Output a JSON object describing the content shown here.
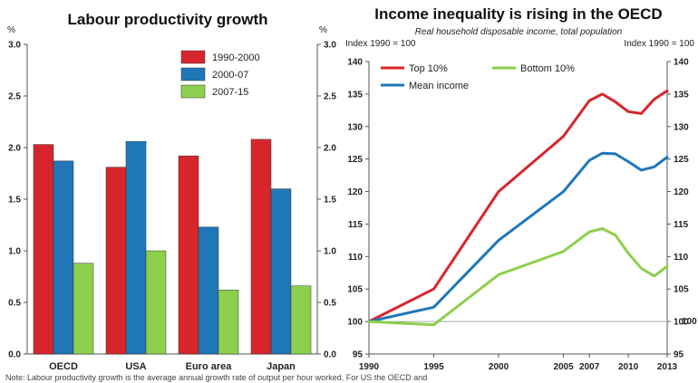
{
  "colors": {
    "series1": "#d7262b",
    "series2": "#1f77b8",
    "series3": "#8ccf4d",
    "top10": "#d7262b",
    "mean": "#1f77b8",
    "bottom10": "#8ccf4d",
    "axis": "#555555",
    "baseline": "#aaaaaa"
  },
  "chart_data": [
    {
      "type": "bar",
      "title": "Labour productivity growth",
      "unit_left": "%",
      "unit_right": "%",
      "categories": [
        "OECD",
        "USA",
        "Euro area",
        "Japan"
      ],
      "series": [
        {
          "name": "1990-2000",
          "values": [
            2.03,
            1.81,
            1.92,
            2.08
          ]
        },
        {
          "name": "2000-07",
          "values": [
            1.87,
            2.06,
            1.23,
            1.6
          ]
        },
        {
          "name": "2007-15",
          "values": [
            0.88,
            1.0,
            0.62,
            0.66
          ]
        }
      ],
      "ylim": [
        0,
        3
      ],
      "yticks": [
        "0.0",
        "0.5",
        "1.0",
        "1.5",
        "2.0",
        "2.5",
        "3.0"
      ],
      "legend": "top-right"
    },
    {
      "type": "line",
      "title": "Income inequality is rising in the OECD",
      "subtitle": "Real household disposable income, total population",
      "ylabel_left": "Index 1990 = 100",
      "ylabel_right": "Index 1990 = 100",
      "xlim": [
        1990,
        2013
      ],
      "ylim": [
        95,
        140
      ],
      "yticks": [
        "95",
        "100",
        "105",
        "110",
        "115",
        "120",
        "125",
        "130",
        "135",
        "140"
      ],
      "xtick_values": [
        1990,
        1995,
        2000,
        2005,
        2007,
        2010,
        2013
      ],
      "xtick_labels": [
        "1990",
        "1995",
        "2000",
        "2005",
        "2007",
        "2010",
        "2013"
      ],
      "right_edge_label": "100",
      "series": [
        {
          "name": "Top 10%",
          "x": [
            1990,
            1995,
            2000,
            2005,
            2007,
            2008,
            2009,
            2010,
            2011,
            2012,
            2013
          ],
          "y": [
            100,
            105,
            120,
            128.5,
            134,
            135,
            133.8,
            132.3,
            132.0,
            134.2,
            135.5
          ]
        },
        {
          "name": "Mean income",
          "x": [
            1990,
            1995,
            2000,
            2005,
            2007,
            2008,
            2009,
            2010,
            2011,
            2012,
            2013
          ],
          "y": [
            100,
            102.2,
            112.5,
            120,
            124.8,
            125.9,
            125.8,
            124.6,
            123.3,
            123.8,
            125.3
          ]
        },
        {
          "name": "Bottom 10%",
          "x": [
            1990,
            1995,
            2000,
            2005,
            2007,
            2008,
            2009,
            2010,
            2011,
            2012,
            2013
          ],
          "y": [
            100,
            99.5,
            107.2,
            110.8,
            113.8,
            114.3,
            113.3,
            110.5,
            108.2,
            107.0,
            108.5
          ]
        }
      ],
      "legend": "top-left"
    }
  ],
  "note": "Note: Labour productivity growth is the average annual growth rate of output per hour worked. For US the OECD and"
}
